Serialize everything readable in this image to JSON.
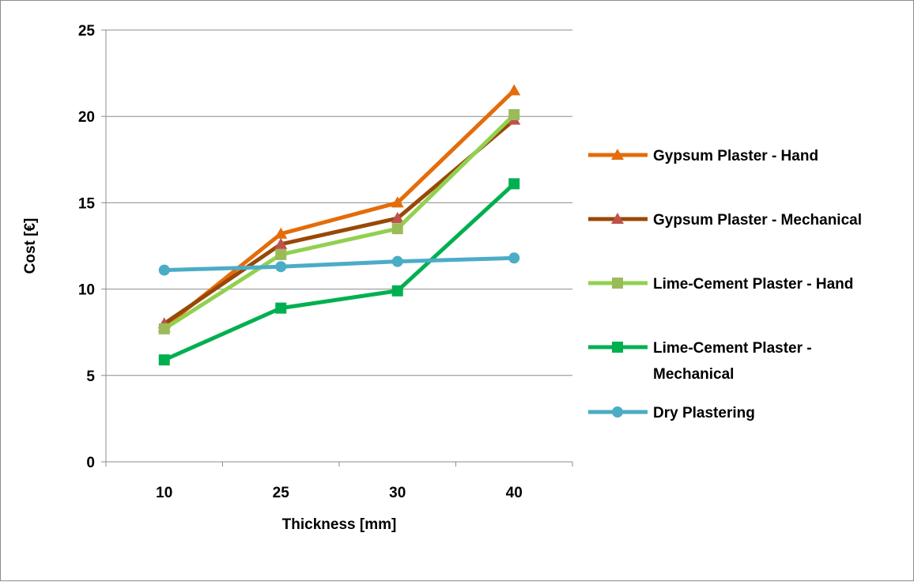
{
  "chart_data": {
    "type": "line",
    "title": "",
    "xlabel": "Thickness [mm]",
    "ylabel": "Cost  [€]",
    "categories": [
      "10",
      "25",
      "30",
      "40"
    ],
    "ylim": [
      0,
      25
    ],
    "yticks": [
      "0",
      "5",
      "10",
      "15",
      "20",
      "25"
    ],
    "grid": "horizontal",
    "legend_position": "right",
    "series": [
      {
        "name": "Gypsum Plaster - Hand",
        "values": [
          7.8,
          13.2,
          15.0,
          21.5
        ],
        "color": "#e46c0a",
        "marker": "triangle"
      },
      {
        "name": "Gypsum Plaster - Mechanical",
        "values": [
          8.0,
          12.6,
          14.1,
          19.8
        ],
        "color": "#984807",
        "marker_color": "#c0504d",
        "marker": "triangle"
      },
      {
        "name": "Lime-Cement Plaster - Hand",
        "values": [
          7.7,
          12.0,
          13.5,
          20.1
        ],
        "color": "#92d050",
        "marker_color": "#9bbb59",
        "marker": "square"
      },
      {
        "name": "Lime-Cement Plaster - Mechanical",
        "values": [
          5.9,
          8.9,
          9.9,
          16.1
        ],
        "color": "#00b050",
        "marker": "square",
        "legend_lines": [
          "Lime-Cement Plaster -",
          "Mechanical"
        ]
      },
      {
        "name": "Dry Plastering",
        "values": [
          11.1,
          11.3,
          11.6,
          11.8
        ],
        "color": "#4bacc6",
        "marker": "circle"
      }
    ]
  }
}
